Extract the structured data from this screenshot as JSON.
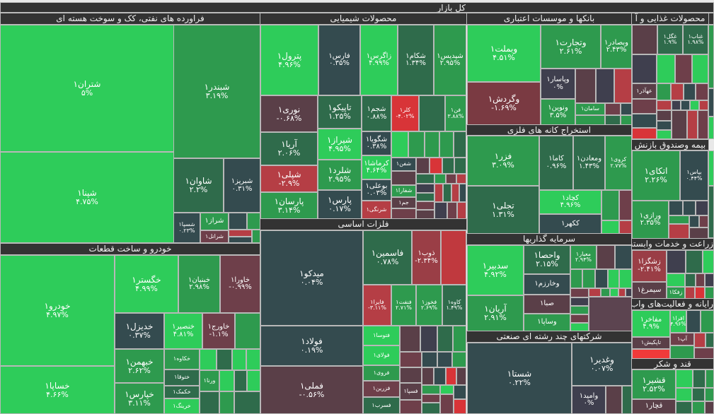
{
  "market_title": "کل بازار",
  "oil": {
    "title": "فراورده های نفتی، کک و سوخت هسته ای",
    "stocks": [
      {
        "name": "شتران۱",
        "pct": "۵%"
      },
      {
        "name": "شپنا۱",
        "pct": "۴.۷۵%"
      },
      {
        "name": "شبندر۱",
        "pct": "۳.۱۹%"
      },
      {
        "name": "شاوان۱",
        "pct": "۲.۲%"
      },
      {
        "name": "شبریز۱",
        "pct": "۰.۳۱%"
      },
      {
        "name": "شسپا۱",
        "pct": "۰.۲۳%"
      },
      {
        "name": "شراز۱"
      },
      {
        "name": "شرانل۱"
      }
    ]
  },
  "auto": {
    "title": "خودرو و ساخت قطعات",
    "stocks": [
      {
        "name": "خودرو۱",
        "pct": "۴.۹۷%"
      },
      {
        "name": "خساپا۱",
        "pct": "۴.۶۶%"
      },
      {
        "name": "خگستر۱",
        "pct": "۴.۹۹%"
      },
      {
        "name": "خبنیان۱",
        "pct": "۲.۹۸%"
      },
      {
        "name": "خاورا۱",
        "pct": "-۰.۹۹%"
      },
      {
        "name": "خدیزل۱",
        "pct": "۰.۳۷%"
      },
      {
        "name": "خنصیر۱",
        "pct": "۴.۸۱%"
      },
      {
        "name": "خاورج۱",
        "pct": "-۱.۱%"
      },
      {
        "name": "خبهمن۱",
        "pct": "۲.۶۲%"
      },
      {
        "name": "خپارس۱",
        "pct": "۳.۱۱%"
      },
      {
        "name": "خکاوه۱"
      },
      {
        "name": "ختوقا۱"
      },
      {
        "name": "خکمک۱"
      },
      {
        "name": "خرینگ۱"
      },
      {
        "name": "ورنا۱"
      }
    ]
  },
  "chem": {
    "title": "محصولات شیمیایی",
    "stocks": [
      {
        "name": "پترول۱",
        "pct": "۴.۹۶%"
      },
      {
        "name": "فارس۱",
        "pct": "۰.۳۵%"
      },
      {
        "name": "زاگرس۱",
        "pct": "۴.۹۹%"
      },
      {
        "name": "شکام۱",
        "pct": "۱.۳۴%"
      },
      {
        "name": "شپدیس۱",
        "pct": "۲.۹۵%"
      },
      {
        "name": "نوری۱",
        "pct": "-۰.۶۸%"
      },
      {
        "name": "آریا۱",
        "pct": "۲.۰۶%"
      },
      {
        "name": "شپلی۱",
        "pct": "-۲.۹%"
      },
      {
        "name": "پارسان۱",
        "pct": "۳.۱۴%"
      },
      {
        "name": "تاپیکو۱",
        "pct": "۱.۲۵%"
      },
      {
        "name": "شیراز۱",
        "pct": "۴.۹۵%"
      },
      {
        "name": "شلرد۱",
        "pct": "۲.۹۵%"
      },
      {
        "name": "پارس۱",
        "pct": "۰.۱۷%"
      },
      {
        "name": "شجم۱",
        "pct": "۰.۸۸%"
      },
      {
        "name": "شگویا۱",
        "pct": "۰.۳۸%"
      },
      {
        "name": "کرماشا۱",
        "pct": "۴.۶۴%"
      },
      {
        "name": "بوعلی۱",
        "pct": "۰.۰۳%"
      },
      {
        "name": "شرنگی۱"
      },
      {
        "name": "کلر۱",
        "pct": "-۴.۰۲%"
      },
      {
        "name": "فن۱",
        "pct": "۳.۸۸%"
      },
      {
        "name": "شفن۱"
      },
      {
        "name": "شفارا۱"
      },
      {
        "name": "جم۱"
      }
    ]
  },
  "metals": {
    "title": "فلزات اساسی",
    "stocks": [
      {
        "name": "میدکو۱",
        "pct": "۰.۰۴%"
      },
      {
        "name": "فولاد۱",
        "pct": "۰.۱۹%"
      },
      {
        "name": "فملی۱",
        "pct": "-۰.۵۶%"
      },
      {
        "name": "فاسمین۱",
        "pct": "۰.۷۸%"
      },
      {
        "name": "ذوب۱",
        "pct": "-۲.۳۴%"
      },
      {
        "name": "فایرا۱",
        "pct": "-۳.۱۱%"
      },
      {
        "name": "فنفت۱",
        "pct": "۲.۷۱%"
      },
      {
        "name": "فخوز۱",
        "pct": "۲.۶۹%"
      },
      {
        "name": "کاوه۱",
        "pct": "۱.۴۹%"
      },
      {
        "name": "فتوسا۱"
      },
      {
        "name": "فولای۱"
      },
      {
        "name": "فروی۱"
      },
      {
        "name": "فزرین۱"
      },
      {
        "name": "فسرب۱"
      },
      {
        "name": "فسپا۱"
      }
    ]
  },
  "banks": {
    "title": "بانکها و موسسات اعتباری",
    "stocks": [
      {
        "name": "وبملت۱",
        "pct": "۴.۵۱%"
      },
      {
        "name": "وگردش۱",
        "pct": "-۱.۶۹%"
      },
      {
        "name": "وتجارت۱",
        "pct": "۲.۶۱%"
      },
      {
        "name": "وبصادر۱",
        "pct": "۲.۴۳%"
      },
      {
        "name": "وپاسار۱",
        "pct": "۰%"
      },
      {
        "name": "ونوین۱",
        "pct": "۳.۵%"
      },
      {
        "name": "سامان۱"
      }
    ]
  },
  "mining": {
    "title": "استخراج کانه های فلزی",
    "stocks": [
      {
        "name": "فزر۱",
        "pct": "۳.۰۹%"
      },
      {
        "name": "تجلی۱",
        "pct": "۱.۳۱%"
      },
      {
        "name": "کاما۱",
        "pct": "۰.۹۶%"
      },
      {
        "name": "ومعادن۱",
        "pct": "۱.۴۳%"
      },
      {
        "name": "کروی۱",
        "pct": "۲.۷۷%"
      },
      {
        "name": "کچاد۱",
        "pct": "۴.۹۶%"
      },
      {
        "name": "ککهر۱"
      }
    ]
  },
  "invest": {
    "title": "سرمایه گذاریها",
    "stocks": [
      {
        "name": "سدبیر۱",
        "pct": "۴.۹۲%"
      },
      {
        "name": "آریان۱",
        "pct": "۲.۹۱%"
      },
      {
        "name": "واحصا۱",
        "pct": "۲.۱۵%"
      },
      {
        "name": "وخارزم۱"
      },
      {
        "name": "صبا۱"
      },
      {
        "name": "وساپا۱"
      },
      {
        "name": "معیار۱",
        "pct": "۲.۹۴%"
      }
    ]
  },
  "multi": {
    "title": "شرکتهای چند رشته ای صنعتی",
    "stocks": [
      {
        "name": "شستا۱",
        "pct": "۰.۲۲%"
      },
      {
        "name": "وغدیر۱",
        "pct": "۰.۰۷%"
      },
      {
        "name": "وامید۱",
        "pct": "۰%"
      }
    ]
  },
  "food": {
    "title": "محصولات غذایی و آ",
    "stocks": [
      {
        "name": "غگل۱",
        "pct": "۱.۹%"
      },
      {
        "name": "غناب۱",
        "pct": "۱.۹۸%"
      },
      {
        "name": "عهآذر۱"
      }
    ]
  },
  "insurance": {
    "title": "بیمه وصندوق بازنش",
    "stocks": [
      {
        "name": "اتکای۱",
        "pct": "۲.۲۶%"
      },
      {
        "name": "بپاس۱",
        "pct": "۰.۴۴%"
      },
      {
        "name": "ورازی۱",
        "pct": "۲.۳۵%"
      }
    ]
  },
  "agri": {
    "title": "زراعت و خدمات وابسته",
    "stocks": [
      {
        "name": "زشگزا۱",
        "pct": "-۲.۴۱%"
      },
      {
        "name": "سیمرغ۱"
      },
      {
        "name": "زفکا۱"
      }
    ]
  },
  "it": {
    "title": "رایانه و فعالیت‌های واب",
    "stocks": [
      {
        "name": "مفاخر۱",
        "pct": "۴.۹%"
      },
      {
        "name": "افرا۱",
        "pct": "۴.۹۶%"
      },
      {
        "name": "آپ۱"
      },
      {
        "name": "تاپکیش۱"
      }
    ]
  },
  "sugar": {
    "title": "قند و شکر",
    "stocks": [
      {
        "name": "قشیر۱",
        "pct": "۲.۵۲%"
      },
      {
        "name": "قچار۱"
      }
    ]
  }
}
